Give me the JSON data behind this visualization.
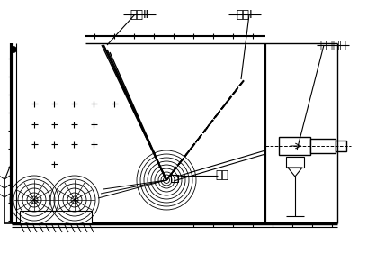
{
  "bg_color": "#ffffff",
  "line_color": "#000000",
  "labels": {
    "state2": "状态Ⅱ",
    "state1": "状态Ⅰ",
    "motor": "电动推杆",
    "baffle": "挡板"
  },
  "figsize": [
    4.08,
    2.82
  ],
  "dpi": 100
}
